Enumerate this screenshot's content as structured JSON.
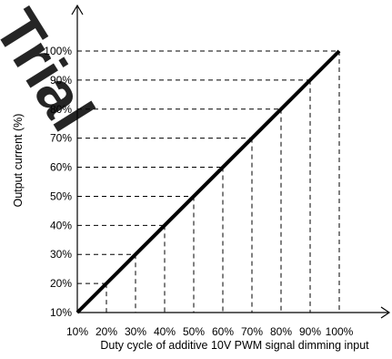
{
  "chart_data": {
    "type": "line",
    "title": "",
    "xlabel": "Duty cycle of additive 10V PWM signal dimming input",
    "ylabel": "Output current (%)",
    "x_ticks": [
      "10%",
      "20%",
      "30%",
      "40%",
      "50%",
      "60%",
      "70%",
      "80%",
      "90%",
      "100%"
    ],
    "y_ticks": [
      "10%",
      "20%",
      "30%",
      "40%",
      "50%",
      "60%",
      "70%",
      "80%",
      "90%",
      "100%"
    ],
    "xlim": [
      10,
      100
    ],
    "ylim": [
      10,
      100
    ],
    "grid": "dashed guide lines from each data point to both axes",
    "series": [
      {
        "x": [
          10,
          20,
          30,
          40,
          50,
          60,
          70,
          80,
          90,
          100
        ],
        "y": [
          10,
          20,
          30,
          40,
          50,
          60,
          70,
          80,
          90,
          100
        ]
      }
    ],
    "watermark": "Trial"
  }
}
